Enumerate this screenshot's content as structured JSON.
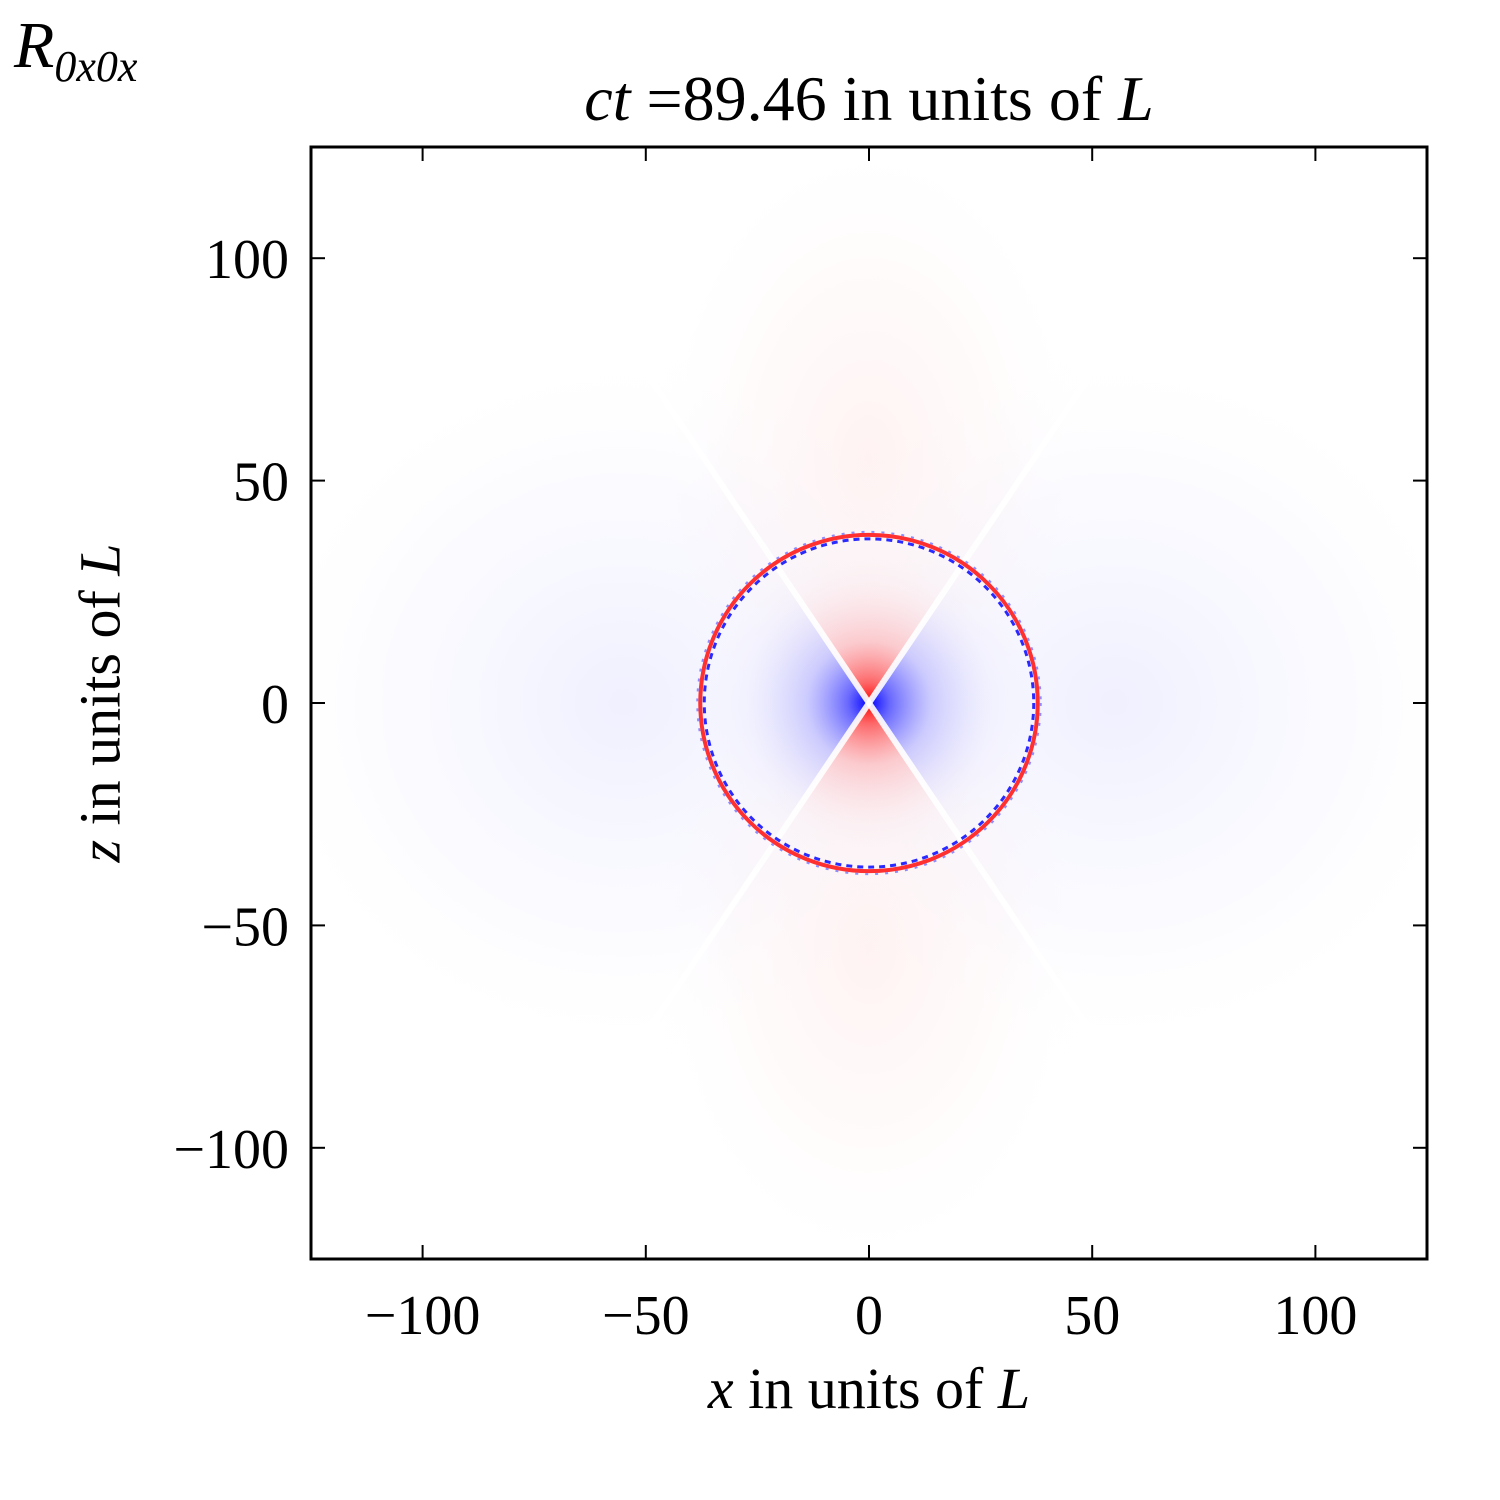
{
  "chart_data": {
    "type": "heatmap",
    "panel_label": {
      "main": "R",
      "sub": "0x0x"
    },
    "title": {
      "var": "ct",
      "eq": " =",
      "value": "89.46",
      "rest": " in units of ",
      "unit": "L"
    },
    "xlabel": {
      "var": "x",
      "rest": " in units of ",
      "unit": "L"
    },
    "ylabel": {
      "var": "z",
      "rest": " in units of ",
      "unit": "L"
    },
    "xlim": [
      -125,
      125
    ],
    "ylim": [
      -125,
      125
    ],
    "xticks": [
      -100,
      -50,
      0,
      50,
      100
    ],
    "yticks": [
      -100,
      -50,
      0,
      50,
      100
    ],
    "xtick_labels": [
      "−100",
      "−50",
      "0",
      "50",
      "100"
    ],
    "ytick_labels": [
      "−100",
      "−50",
      "0",
      "50",
      "100"
    ],
    "wavefront_radius": 37.8,
    "colors": {
      "positive": "#ff0000",
      "negative": "#0000ff",
      "zero": "#ffffff"
    },
    "grid": false
  }
}
